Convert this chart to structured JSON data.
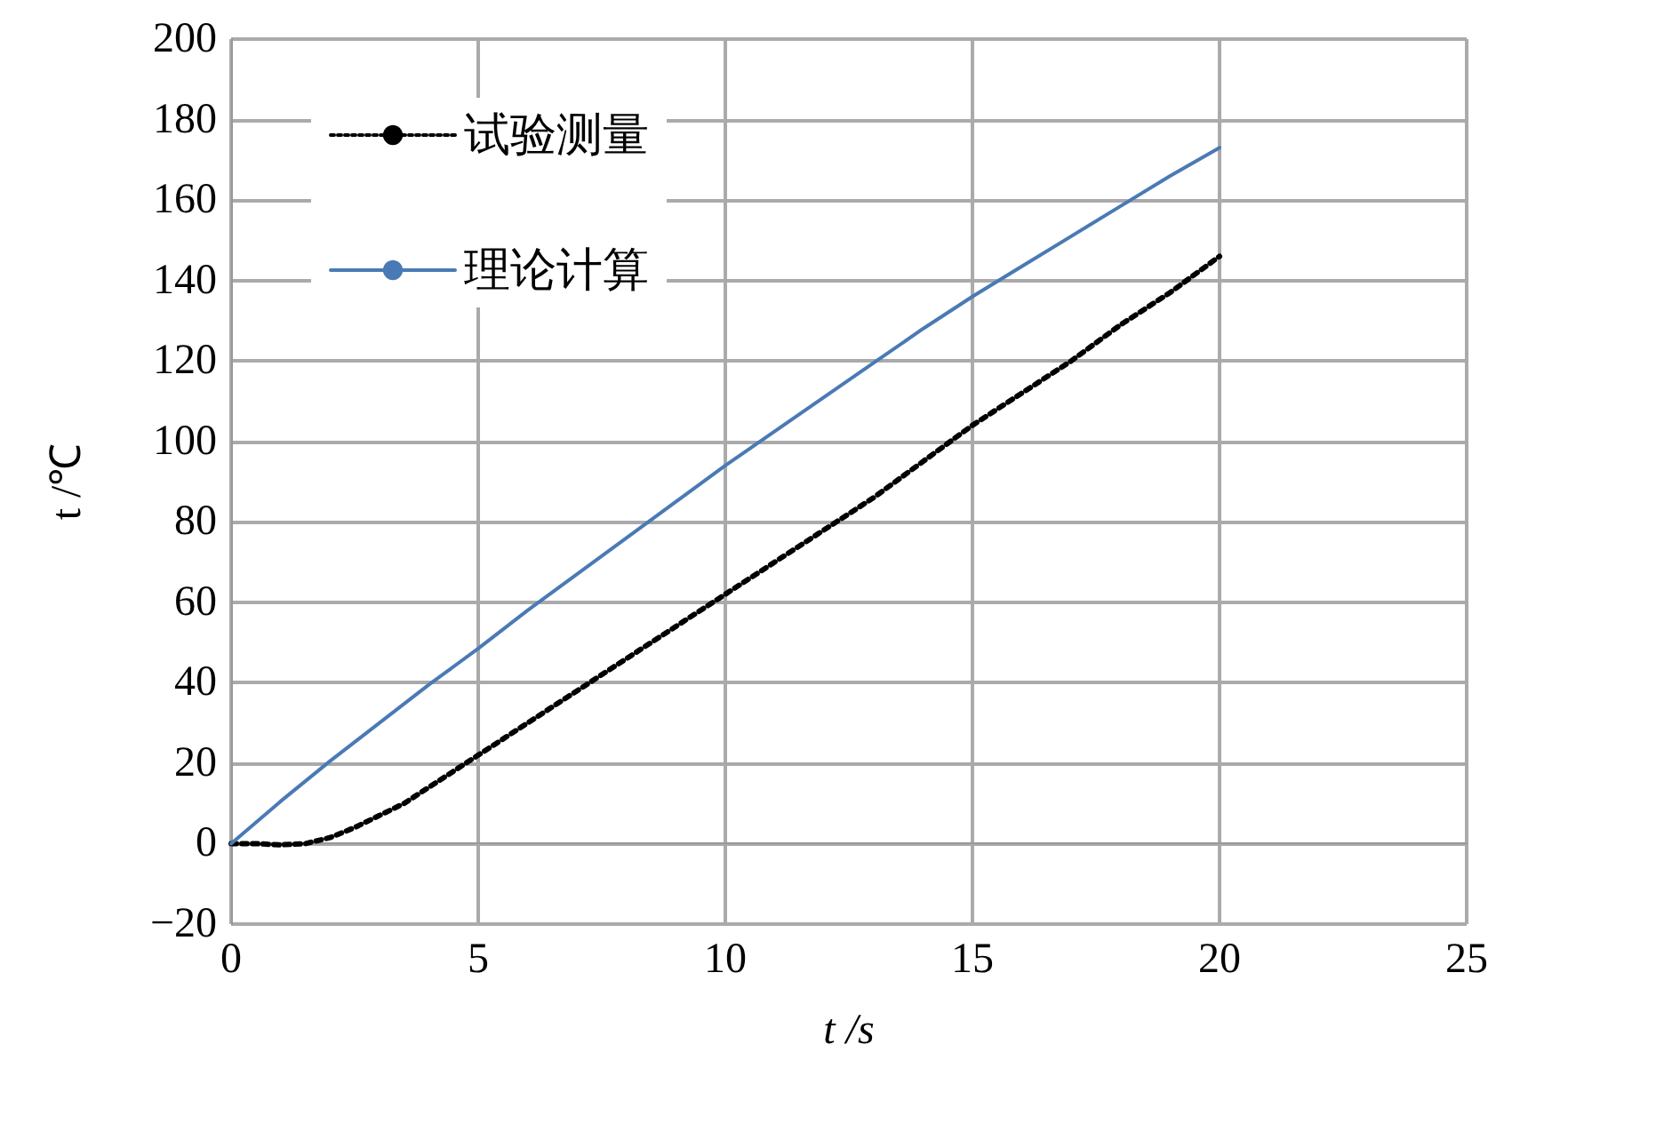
{
  "chart_data": {
    "type": "line",
    "xlabel": "t /s",
    "ylabel": "t /℃",
    "xlim": [
      0,
      25
    ],
    "xticks": [
      0,
      5,
      10,
      15,
      20,
      25
    ],
    "ylim": [
      -20,
      200
    ],
    "yticks": [
      -20,
      0,
      20,
      40,
      60,
      80,
      100,
      120,
      140,
      160,
      180,
      200
    ],
    "grid": true,
    "legend": "top left",
    "marker": "none",
    "series": [
      {
        "name": "试验测量",
        "color": "#000000",
        "line_style": "dotted",
        "x": [
          0,
          0.5,
          1,
          1.5,
          2,
          2.5,
          3,
          3.5,
          4,
          4.5,
          5,
          6,
          7,
          8,
          9,
          10,
          11,
          12,
          13,
          14,
          15,
          16,
          17,
          18,
          19,
          20
        ],
        "values": [
          0,
          0,
          -0.3,
          0,
          1.5,
          4,
          7,
          10,
          14,
          18,
          22,
          30,
          38,
          46,
          54,
          62,
          70,
          78,
          86,
          95,
          104,
          112,
          120,
          129,
          137,
          146
        ]
      },
      {
        "name": "理论计算",
        "color": "#4a7ab5",
        "line_style": "solid",
        "x": [
          0,
          1,
          2,
          3,
          4,
          5,
          6,
          7,
          8,
          9,
          10,
          11,
          12,
          13,
          14,
          15,
          16,
          17,
          18,
          19,
          20
        ],
        "values": [
          0,
          10.5,
          20.5,
          30,
          39.5,
          48.5,
          58,
          67,
          76,
          85,
          94,
          102.5,
          111,
          119.5,
          128,
          136,
          143.5,
          151,
          158.5,
          166,
          173
        ]
      }
    ]
  }
}
